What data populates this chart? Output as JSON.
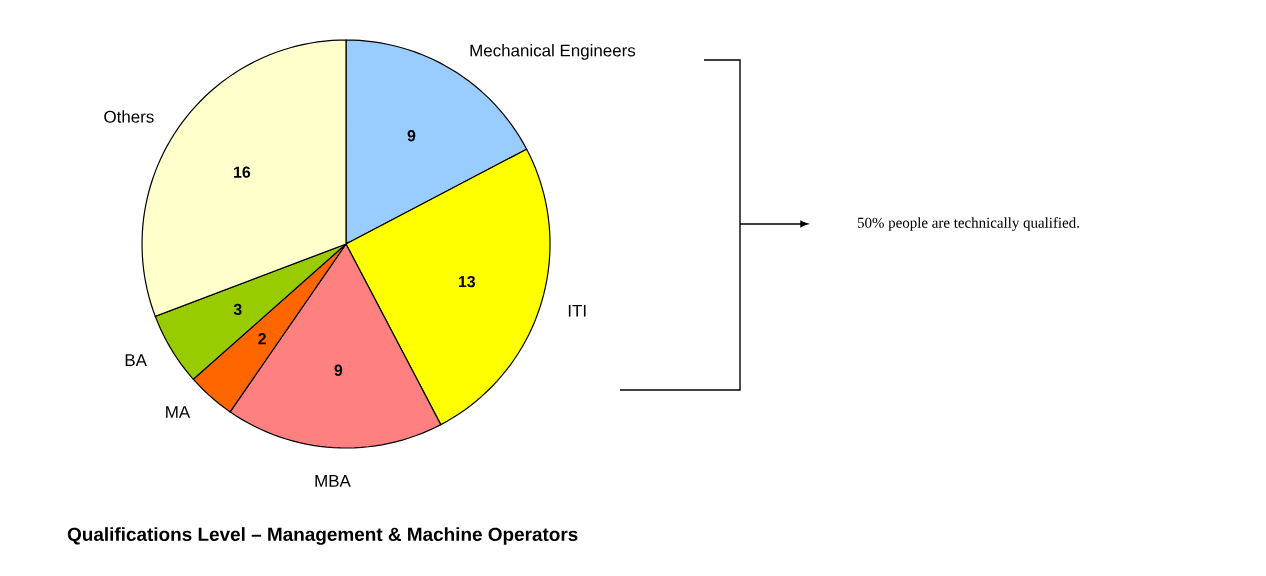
{
  "chart_data": {
    "type": "pie",
    "title": "Qualifications Level – Management & Machine Operators",
    "categories": [
      "Mechanical Engineers",
      "ITI",
      "MBA",
      "MA",
      "BA",
      "Others"
    ],
    "values": [
      9,
      13,
      9,
      2,
      3,
      16
    ],
    "colors": [
      "#99ccff",
      "#ffff00",
      "#ff8080",
      "#ff6600",
      "#99cc00",
      "#ffffcc"
    ],
    "data_labels": true,
    "annotations": [
      "50% people are technically qualified."
    ]
  }
}
